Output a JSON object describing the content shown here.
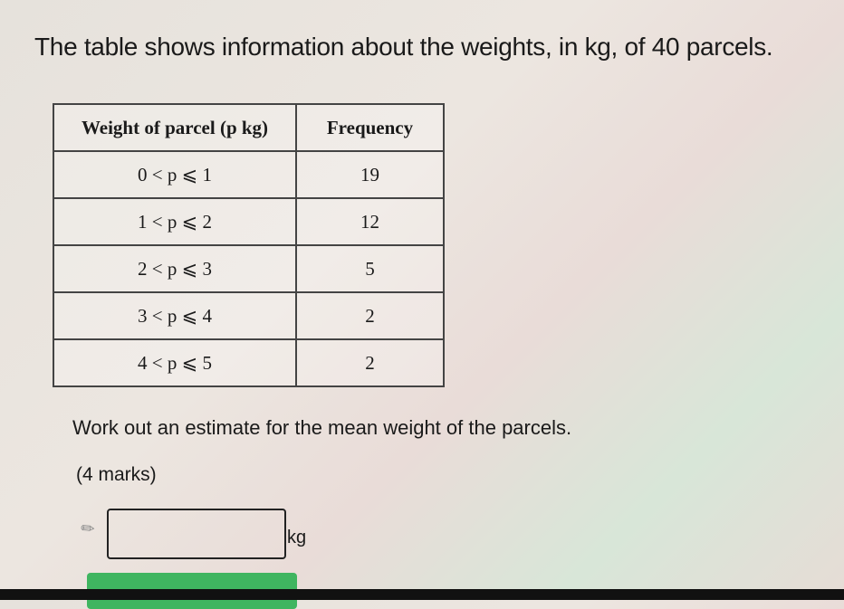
{
  "question": {
    "intro": "The table shows information about the weights, in kg, of 40 parcels.",
    "table": {
      "headers": [
        "Weight of parcel (p kg)",
        "Frequency"
      ],
      "rows": [
        {
          "weight": "0 < p ⩽ 1",
          "frequency": "19"
        },
        {
          "weight": "1 < p ⩽ 2",
          "frequency": "12"
        },
        {
          "weight": "2 < p ⩽ 3",
          "frequency": "5"
        },
        {
          "weight": "3 < p ⩽ 4",
          "frequency": "2"
        },
        {
          "weight": "4 < p ⩽ 5",
          "frequency": "2"
        }
      ]
    },
    "prompt": "Work out an estimate for the mean weight of the parcels.",
    "marks": "(4 marks)"
  },
  "answer": {
    "value": "",
    "unit": "kg",
    "icon": "pencil-icon"
  },
  "colors": {
    "submit": "#3fb560"
  }
}
